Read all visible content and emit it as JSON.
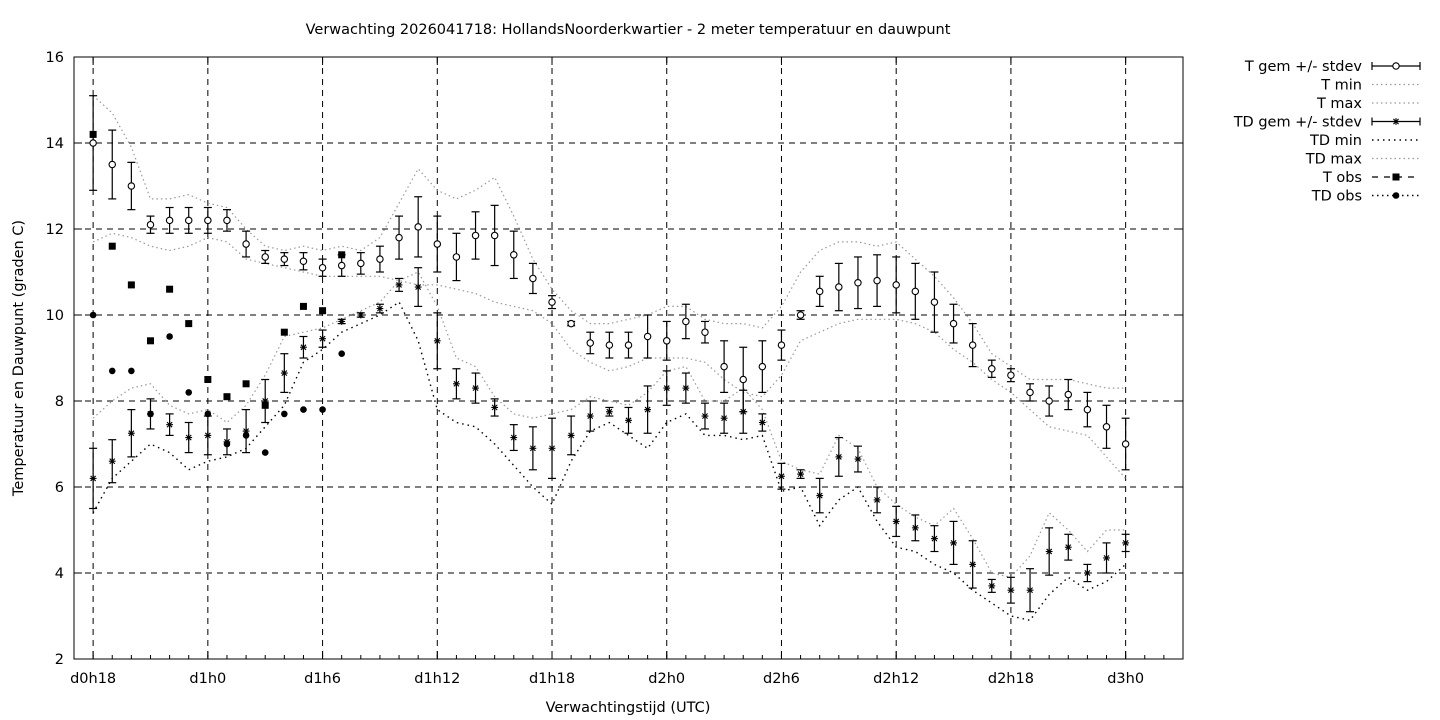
{
  "chart_data": {
    "type": "line",
    "title": "Verwachting 2026041718: HollandsNoorderkwartier - 2 meter temperatuur en dauwpunt",
    "xlabel": "Verwachtingstijd (UTC)",
    "ylabel": "Temperatuur en Dauwpunt (graden C)",
    "x_unit": "forecast hour",
    "xlim": [
      -1,
      57
    ],
    "ylim": [
      2,
      16
    ],
    "xticks": [
      {
        "x": 0,
        "label": "d0h18"
      },
      {
        "x": 6,
        "label": "d1h0"
      },
      {
        "x": 12,
        "label": "d1h6"
      },
      {
        "x": 18,
        "label": "d1h12"
      },
      {
        "x": 24,
        "label": "d1h18"
      },
      {
        "x": 30,
        "label": "d2h0"
      },
      {
        "x": 36,
        "label": "d2h6"
      },
      {
        "x": 42,
        "label": "d2h12"
      },
      {
        "x": 48,
        "label": "d2h18"
      },
      {
        "x": 54,
        "label": "d3h0"
      }
    ],
    "yticks": [
      2,
      4,
      6,
      8,
      10,
      12,
      14,
      16
    ],
    "grid": true,
    "legend_position": "outside-right",
    "legend": [
      {
        "key": "t_mean",
        "label": "T gem +/- stdev"
      },
      {
        "key": "t_min",
        "label": "T min"
      },
      {
        "key": "t_max",
        "label": "T max"
      },
      {
        "key": "td_mean",
        "label": "TD gem +/- stdev"
      },
      {
        "key": "td_min",
        "label": "TD min"
      },
      {
        "key": "td_max",
        "label": "TD max"
      },
      {
        "key": "t_obs",
        "label": "T obs"
      },
      {
        "key": "td_obs",
        "label": "TD obs"
      }
    ],
    "x": [
      0,
      1,
      2,
      3,
      4,
      5,
      6,
      7,
      8,
      9,
      10,
      11,
      12,
      13,
      14,
      15,
      16,
      17,
      18,
      19,
      20,
      21,
      22,
      23,
      24,
      25,
      26,
      27,
      28,
      29,
      30,
      31,
      32,
      33,
      34,
      35,
      36,
      37,
      38,
      39,
      40,
      41,
      42,
      43,
      44,
      45,
      46,
      47,
      48,
      49,
      50,
      51,
      52,
      53,
      54
    ],
    "series": [
      {
        "key": "t_mean",
        "marker": "circle",
        "values": [
          14.0,
          13.5,
          13.0,
          12.1,
          12.2,
          12.2,
          12.2,
          12.2,
          11.65,
          11.35,
          11.3,
          11.25,
          11.1,
          11.15,
          11.2,
          11.3,
          11.8,
          12.05,
          11.65,
          11.35,
          11.85,
          11.85,
          11.4,
          10.85,
          10.3,
          9.8,
          9.35,
          9.3,
          9.3,
          9.5,
          9.4,
          9.85,
          9.6,
          8.8,
          8.5,
          8.8,
          9.3,
          10.0,
          10.55,
          10.65,
          10.75,
          10.8,
          10.7,
          10.55,
          10.3,
          9.8,
          9.3,
          8.75,
          8.6,
          8.2,
          8.0,
          8.15,
          7.8,
          7.4,
          7.0
        ],
        "stdev": [
          1.1,
          0.8,
          0.55,
          0.2,
          0.3,
          0.3,
          0.3,
          0.25,
          0.3,
          0.15,
          0.15,
          0.2,
          0.2,
          0.25,
          0.25,
          0.3,
          0.5,
          0.7,
          0.65,
          0.55,
          0.55,
          0.7,
          0.55,
          0.35,
          0.15,
          0.05,
          0.25,
          0.3,
          0.3,
          0.5,
          0.45,
          0.4,
          0.25,
          0.6,
          0.75,
          0.6,
          0.35,
          0.1,
          0.35,
          0.55,
          0.6,
          0.6,
          0.65,
          0.65,
          0.7,
          0.45,
          0.5,
          0.2,
          0.15,
          0.2,
          0.35,
          0.35,
          0.4,
          0.5,
          0.6
        ]
      },
      {
        "key": "t_min",
        "style": "dotted-grey",
        "values": [
          11.7,
          11.9,
          11.8,
          11.6,
          11.5,
          11.6,
          11.8,
          11.7,
          11.3,
          11.2,
          11.1,
          11.0,
          10.9,
          10.9,
          10.9,
          10.9,
          10.8,
          10.7,
          10.7,
          10.6,
          10.5,
          10.3,
          10.2,
          10.1,
          9.8,
          9.2,
          8.9,
          8.7,
          8.8,
          9.0,
          9.0,
          9.0,
          8.9,
          8.5,
          8.2,
          8.1,
          8.6,
          9.4,
          9.6,
          9.8,
          9.9,
          9.9,
          9.9,
          9.8,
          9.6,
          9.2,
          8.9,
          8.5,
          8.2,
          7.8,
          7.4,
          7.3,
          7.2,
          6.7,
          6.2
        ]
      },
      {
        "key": "t_max",
        "style": "dotted-grey",
        "values": [
          15.1,
          14.7,
          13.9,
          12.7,
          12.7,
          12.8,
          12.6,
          12.5,
          12.0,
          11.6,
          11.5,
          11.6,
          11.5,
          11.6,
          11.5,
          11.8,
          12.6,
          13.4,
          12.9,
          12.7,
          12.9,
          13.2,
          12.3,
          11.3,
          10.6,
          10.1,
          9.8,
          9.8,
          9.9,
          10.0,
          10.2,
          10.2,
          9.9,
          9.8,
          9.8,
          9.7,
          10.2,
          11.0,
          11.5,
          11.7,
          11.7,
          11.6,
          11.7,
          11.3,
          10.9,
          10.4,
          9.8,
          9.1,
          8.8,
          8.5,
          8.5,
          8.5,
          8.4,
          8.3,
          8.3
        ]
      },
      {
        "key": "td_mean",
        "marker": "star",
        "values": [
          6.2,
          6.6,
          7.25,
          7.7,
          7.45,
          7.15,
          7.2,
          7.05,
          7.3,
          8.0,
          8.65,
          9.25,
          9.45,
          9.85,
          10.0,
          10.15,
          10.7,
          10.65,
          9.4,
          8.4,
          8.3,
          7.85,
          7.15,
          6.9,
          6.9,
          7.2,
          7.65,
          7.75,
          7.55,
          7.8,
          8.3,
          8.3,
          7.65,
          7.6,
          7.75,
          7.5,
          6.25,
          6.3,
          5.8,
          6.7,
          6.65,
          5.7,
          5.2,
          5.05,
          4.8,
          4.7,
          4.2,
          3.7,
          3.6,
          3.6,
          4.5,
          4.6,
          4.0,
          4.35,
          4.7
        ]
      },
      {
        "key": "td_stdev",
        "values": [
          0.7,
          0.5,
          0.55,
          0.35,
          0.25,
          0.35,
          0.45,
          0.3,
          0.5,
          0.5,
          0.45,
          0.25,
          0.2,
          0.05,
          0.05,
          0.1,
          0.15,
          0.45,
          0.65,
          0.35,
          0.35,
          0.2,
          0.3,
          0.5,
          0.7,
          0.45,
          0.35,
          0.1,
          0.3,
          0.55,
          0.4,
          0.35,
          0.3,
          0.35,
          0.5,
          0.2,
          0.3,
          0.1,
          0.4,
          0.45,
          0.3,
          0.3,
          0.35,
          0.3,
          0.3,
          0.5,
          0.55,
          0.15,
          0.3,
          0.5,
          0.55,
          0.3,
          0.2,
          0.35,
          0.2
        ]
      },
      {
        "key": "td_min",
        "style": "dotted-black",
        "values": [
          5.4,
          6.2,
          6.6,
          7.0,
          6.8,
          6.4,
          6.6,
          6.7,
          6.9,
          7.4,
          7.9,
          8.9,
          9.2,
          9.6,
          9.8,
          10.0,
          10.3,
          9.4,
          7.8,
          7.5,
          7.4,
          7.0,
          6.5,
          6.0,
          5.6,
          6.6,
          7.3,
          7.5,
          7.2,
          6.9,
          7.5,
          7.7,
          7.2,
          7.2,
          7.1,
          7.2,
          5.9,
          6.0,
          5.1,
          5.7,
          6.0,
          5.2,
          4.6,
          4.5,
          4.2,
          4.0,
          3.6,
          3.3,
          3.0,
          2.9,
          3.5,
          3.9,
          3.6,
          3.8,
          4.2
        ]
      },
      {
        "key": "td_max",
        "style": "dotted-grey",
        "values": [
          7.6,
          8.0,
          8.3,
          8.4,
          7.9,
          7.7,
          7.8,
          7.5,
          7.9,
          8.6,
          9.5,
          9.6,
          9.7,
          9.9,
          10.1,
          10.3,
          10.8,
          11.0,
          10.2,
          9.0,
          8.8,
          8.1,
          7.7,
          7.6,
          7.7,
          7.8,
          8.1,
          8.0,
          7.9,
          8.2,
          8.7,
          8.8,
          8.0,
          8.0,
          8.3,
          7.8,
          6.6,
          6.4,
          6.3,
          7.2,
          6.9,
          6.0,
          5.6,
          5.3,
          5.1,
          5.5,
          4.8,
          4.0,
          3.9,
          4.4,
          5.4,
          5.0,
          4.5,
          5.0,
          5.0
        ]
      },
      {
        "key": "t_obs",
        "marker": "square",
        "x": [
          0,
          1,
          2,
          3,
          4,
          5,
          6,
          7,
          8,
          9,
          10,
          11,
          12,
          13
        ],
        "values": [
          14.2,
          11.6,
          10.7,
          9.4,
          10.6,
          9.8,
          8.5,
          8.1,
          8.4,
          7.9,
          9.6,
          10.2,
          10.1,
          11.4
        ]
      },
      {
        "key": "td_obs",
        "marker": "dot",
        "x": [
          0,
          1,
          2,
          3,
          4,
          5,
          6,
          7,
          8,
          9,
          10,
          11,
          12,
          13
        ],
        "values": [
          10.0,
          8.7,
          8.7,
          7.7,
          9.5,
          8.2,
          7.7,
          7.0,
          7.2,
          6.8,
          7.7,
          7.8,
          7.8,
          9.1
        ]
      }
    ]
  }
}
